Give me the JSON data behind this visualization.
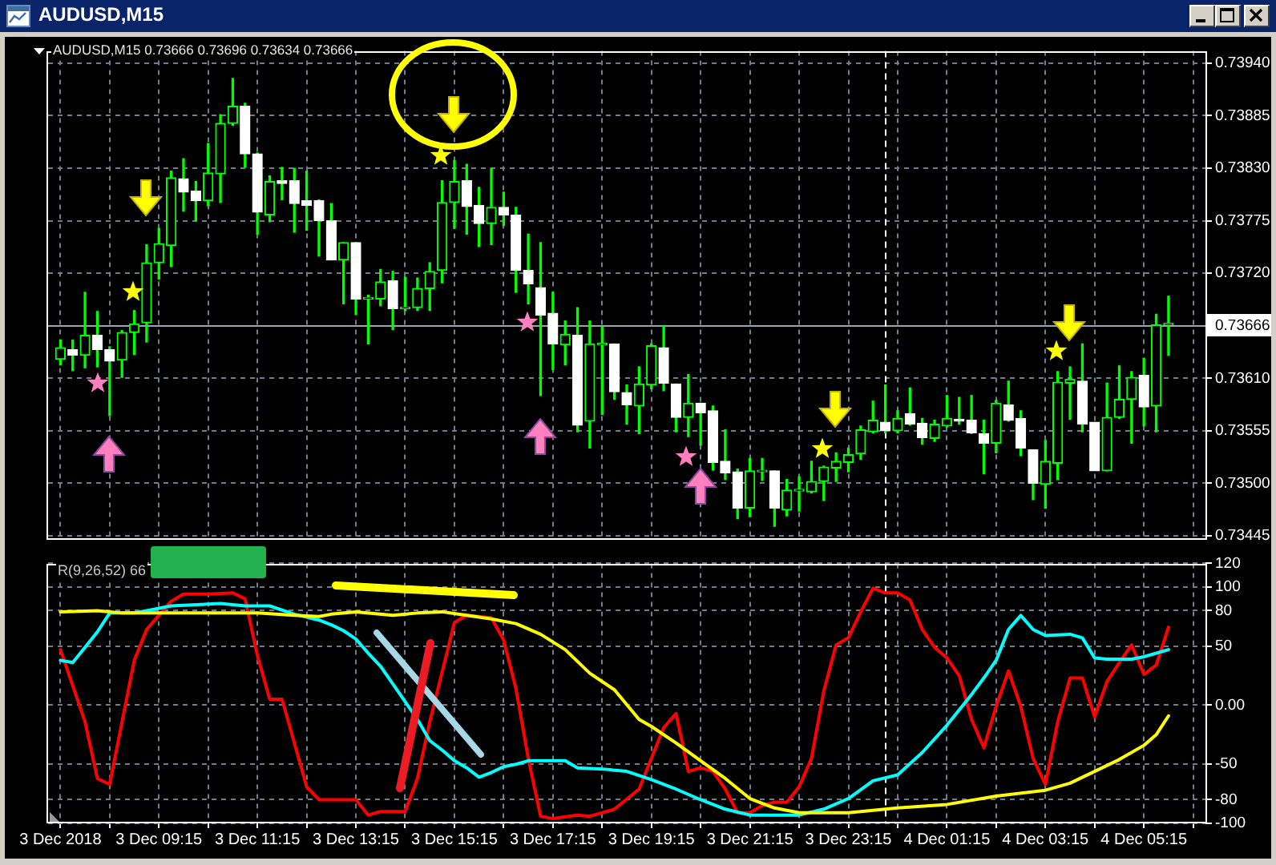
{
  "chart_data": [
    {
      "type": "candlestick",
      "title": "AUDUSD,M15",
      "subtitle": "AUDUSD,M15 0.73666 0.73696 0.73634 0.73666",
      "x": [
        "2018-12-03T07:15",
        "2018-12-03T07:30",
        "2018-12-03T07:45",
        "2018-12-03T08:00",
        "2018-12-03T08:15",
        "2018-12-03T08:30",
        "2018-12-03T08:45",
        "2018-12-03T09:00",
        "2018-12-03T09:15",
        "2018-12-03T09:30",
        "2018-12-03T09:45",
        "2018-12-03T10:00",
        "2018-12-03T10:15",
        "2018-12-03T10:30",
        "2018-12-03T10:45",
        "2018-12-03T11:00",
        "2018-12-03T11:15",
        "2018-12-03T11:30",
        "2018-12-03T11:45",
        "2018-12-03T12:00",
        "2018-12-03T12:15",
        "2018-12-03T12:30",
        "2018-12-03T12:45",
        "2018-12-03T13:00",
        "2018-12-03T13:15",
        "2018-12-03T13:30",
        "2018-12-03T13:45",
        "2018-12-03T14:00",
        "2018-12-03T14:15",
        "2018-12-03T14:30",
        "2018-12-03T14:45",
        "2018-12-03T15:00",
        "2018-12-03T15:15",
        "2018-12-03T15:30",
        "2018-12-03T15:45",
        "2018-12-03T16:00",
        "2018-12-03T16:15",
        "2018-12-03T16:30",
        "2018-12-03T16:45",
        "2018-12-03T17:00",
        "2018-12-03T17:15",
        "2018-12-03T17:30",
        "2018-12-03T17:45",
        "2018-12-03T18:00",
        "2018-12-03T18:15",
        "2018-12-03T18:30",
        "2018-12-03T18:45",
        "2018-12-03T19:00",
        "2018-12-03T19:15",
        "2018-12-03T19:30",
        "2018-12-03T19:45",
        "2018-12-03T20:00",
        "2018-12-03T20:15",
        "2018-12-03T20:30",
        "2018-12-03T20:45",
        "2018-12-03T21:00",
        "2018-12-03T21:15",
        "2018-12-03T21:30",
        "2018-12-03T21:45",
        "2018-12-03T22:00",
        "2018-12-03T22:15",
        "2018-12-03T22:30",
        "2018-12-03T22:45",
        "2018-12-03T23:00",
        "2018-12-03T23:15",
        "2018-12-03T23:30",
        "2018-12-03T23:45",
        "2018-12-04T00:00",
        "2018-12-04T00:15",
        "2018-12-04T00:30",
        "2018-12-04T00:45",
        "2018-12-04T01:00",
        "2018-12-04T01:15",
        "2018-12-04T01:30",
        "2018-12-04T01:45",
        "2018-12-04T02:00",
        "2018-12-04T02:15",
        "2018-12-04T02:30",
        "2018-12-04T02:45",
        "2018-12-04T03:00",
        "2018-12-04T03:15",
        "2018-12-04T03:30",
        "2018-12-04T03:45",
        "2018-12-04T04:00",
        "2018-12-04T04:15",
        "2018-12-04T04:30",
        "2018-12-04T04:45",
        "2018-12-04T05:00",
        "2018-12-04T05:15",
        "2018-12-04T05:30",
        "2018-12-04T05:45"
      ],
      "ohlc": [
        [
          0.7363,
          0.7365,
          0.73624,
          0.73642
        ],
        [
          0.7364,
          0.7365,
          0.73618,
          0.73634
        ],
        [
          0.73634,
          0.737,
          0.73621,
          0.73655
        ],
        [
          0.73655,
          0.7368,
          0.73622,
          0.7364
        ],
        [
          0.7364,
          0.73643,
          0.73571,
          0.73628
        ],
        [
          0.73629,
          0.7366,
          0.73611,
          0.73658
        ],
        [
          0.73658,
          0.73681,
          0.73635,
          0.73667
        ],
        [
          0.73668,
          0.7375,
          0.73648,
          0.73731
        ],
        [
          0.73731,
          0.73767,
          0.73714,
          0.73751
        ],
        [
          0.73749,
          0.73827,
          0.73727,
          0.7382
        ],
        [
          0.73819,
          0.7384,
          0.73785,
          0.73805
        ],
        [
          0.73806,
          0.73816,
          0.73775,
          0.73796
        ],
        [
          0.73796,
          0.73856,
          0.73791,
          0.73825
        ],
        [
          0.73824,
          0.73886,
          0.73794,
          0.73877
        ],
        [
          0.73877,
          0.73924,
          0.73875,
          0.73895
        ],
        [
          0.73895,
          0.73898,
          0.73831,
          0.73845
        ],
        [
          0.73845,
          0.73846,
          0.73761,
          0.73784
        ],
        [
          0.73781,
          0.73822,
          0.73774,
          0.73816
        ],
        [
          0.73817,
          0.73831,
          0.73797,
          0.73814
        ],
        [
          0.73817,
          0.7383,
          0.73763,
          0.73793
        ],
        [
          0.73796,
          0.73827,
          0.73765,
          0.73791
        ],
        [
          0.73796,
          0.73797,
          0.73738,
          0.73775
        ],
        [
          0.73775,
          0.73793,
          0.73734,
          0.73734
        ],
        [
          0.73734,
          0.73752,
          0.73688,
          0.73752
        ],
        [
          0.73752,
          0.73752,
          0.73677,
          0.73693
        ],
        [
          0.73693,
          0.73697,
          0.73646,
          0.73693
        ],
        [
          0.73693,
          0.73724,
          0.73686,
          0.73711
        ],
        [
          0.73712,
          0.73722,
          0.73661,
          0.73683
        ],
        [
          0.73683,
          0.73716,
          0.73681,
          0.73683
        ],
        [
          0.73684,
          0.73715,
          0.73681,
          0.73704
        ],
        [
          0.73704,
          0.73731,
          0.73681,
          0.73722
        ],
        [
          0.73723,
          0.73817,
          0.7371,
          0.73794
        ],
        [
          0.73794,
          0.73838,
          0.73767,
          0.73816
        ],
        [
          0.73817,
          0.73834,
          0.73761,
          0.7379
        ],
        [
          0.73791,
          0.7381,
          0.73748,
          0.73772
        ],
        [
          0.73772,
          0.7383,
          0.7375,
          0.73789
        ],
        [
          0.73789,
          0.73805,
          0.7377,
          0.73781
        ],
        [
          0.73781,
          0.73789,
          0.737,
          0.73723
        ],
        [
          0.73723,
          0.73761,
          0.73688,
          0.73709
        ],
        [
          0.73705,
          0.73752,
          0.73592,
          0.73676
        ],
        [
          0.73678,
          0.737,
          0.73619,
          0.73646
        ],
        [
          0.73645,
          0.7367,
          0.73624,
          0.73656
        ],
        [
          0.73655,
          0.73684,
          0.73554,
          0.73561
        ],
        [
          0.73565,
          0.7367,
          0.73537,
          0.73646
        ],
        [
          0.73645,
          0.73664,
          0.73572,
          0.73645
        ],
        [
          0.73646,
          0.73646,
          0.73588,
          0.73596
        ],
        [
          0.73595,
          0.73603,
          0.73562,
          0.73582
        ],
        [
          0.73581,
          0.73622,
          0.73552,
          0.73604
        ],
        [
          0.73603,
          0.73646,
          0.73599,
          0.73644
        ],
        [
          0.73642,
          0.73665,
          0.73597,
          0.73605
        ],
        [
          0.73604,
          0.73604,
          0.73554,
          0.73569
        ],
        [
          0.73569,
          0.73614,
          0.73549,
          0.73584
        ],
        [
          0.73584,
          0.73584,
          0.7354,
          0.73574
        ],
        [
          0.73576,
          0.73581,
          0.73514,
          0.73522
        ],
        [
          0.73523,
          0.73556,
          0.73504,
          0.73511
        ],
        [
          0.73512,
          0.73515,
          0.73463,
          0.73474
        ],
        [
          0.73474,
          0.73526,
          0.73465,
          0.73513
        ],
        [
          0.73512,
          0.73526,
          0.73503,
          0.73512
        ],
        [
          0.73513,
          0.73513,
          0.73455,
          0.73474
        ],
        [
          0.73472,
          0.73504,
          0.73466,
          0.73493
        ],
        [
          0.73492,
          0.73507,
          0.73471,
          0.73492
        ],
        [
          0.73491,
          0.73523,
          0.7349,
          0.73502
        ],
        [
          0.73502,
          0.73518,
          0.73482,
          0.73517
        ],
        [
          0.73516,
          0.73532,
          0.73502,
          0.73523
        ],
        [
          0.73522,
          0.73537,
          0.73512,
          0.7353
        ],
        [
          0.73531,
          0.7356,
          0.73525,
          0.73556
        ],
        [
          0.73554,
          0.73586,
          0.73553,
          0.73566
        ],
        [
          0.73564,
          0.73603,
          0.73553,
          0.73555
        ],
        [
          0.73555,
          0.73576,
          0.73553,
          0.73568
        ],
        [
          0.73573,
          0.736,
          0.73561,
          0.73562
        ],
        [
          0.73563,
          0.73568,
          0.73541,
          0.73548
        ],
        [
          0.73547,
          0.73566,
          0.73544,
          0.73562
        ],
        [
          0.7356,
          0.73592,
          0.73559,
          0.73568
        ],
        [
          0.73567,
          0.7359,
          0.73562,
          0.73565
        ],
        [
          0.73566,
          0.73592,
          0.73552,
          0.73553
        ],
        [
          0.73552,
          0.73566,
          0.7351,
          0.73542
        ],
        [
          0.73542,
          0.73587,
          0.73532,
          0.73584
        ],
        [
          0.73582,
          0.73607,
          0.73565,
          0.73566
        ],
        [
          0.73568,
          0.73576,
          0.73529,
          0.73537
        ],
        [
          0.73535,
          0.73535,
          0.73483,
          0.735
        ],
        [
          0.73499,
          0.73545,
          0.73474,
          0.73523
        ],
        [
          0.73521,
          0.73617,
          0.73504,
          0.73606
        ],
        [
          0.73605,
          0.73622,
          0.73567,
          0.73609
        ],
        [
          0.73607,
          0.73646,
          0.73554,
          0.73562
        ],
        [
          0.73564,
          0.73565,
          0.73512,
          0.73513
        ],
        [
          0.73513,
          0.73605,
          0.73513,
          0.73569
        ],
        [
          0.73569,
          0.73623,
          0.73568,
          0.73588
        ],
        [
          0.73588,
          0.73617,
          0.73542,
          0.73611
        ],
        [
          0.73613,
          0.73631,
          0.7356,
          0.7358
        ],
        [
          0.73581,
          0.73677,
          0.73554,
          0.73666
        ],
        [
          0.73666,
          0.73696,
          0.73634,
          0.73666
        ]
      ],
      "color": "#00ff00",
      "colors": [
        "#00ff00",
        "#ffffff",
        "#00ff00",
        "#ffffff",
        "#ffffff",
        "#00ff00",
        "#00ff00",
        "#00ff00",
        "#00ff00",
        "#00ff00",
        "#ffffff",
        "#ffffff",
        "#00ff00",
        "#00ff00",
        "#00ff00",
        "#ffffff",
        "#ffffff",
        "#00ff00",
        "#ffffff",
        "#ffffff",
        "#ffffff",
        "#ffffff",
        "#ffffff",
        "#00ff00",
        "#ffffff",
        "#00ff00",
        "#00ff00",
        "#ffffff",
        "#00ff00",
        "#00ff00",
        "#00ff00",
        "#00ff00",
        "#00ff00",
        "#ffffff",
        "#ffffff",
        "#00ff00",
        "#ffffff",
        "#ffffff",
        "#ffffff",
        "#ffffff",
        "#ffffff",
        "#00ff00",
        "#ffffff",
        "#00ff00",
        "#00ff00",
        "#ffffff",
        "#ffffff",
        "#00ff00",
        "#00ff00",
        "#ffffff",
        "#ffffff",
        "#00ff00",
        "#ffffff",
        "#ffffff",
        "#ffffff",
        "#ffffff",
        "#00ff00",
        "#00ff00",
        "#ffffff",
        "#00ff00",
        "#00ff00",
        "#00ff00",
        "#00ff00",
        "#00ff00",
        "#00ff00",
        "#00ff00",
        "#00ff00",
        "#ffffff",
        "#00ff00",
        "#ffffff",
        "#ffffff",
        "#00ff00",
        "#00ff00",
        "#ffffff",
        "#ffffff",
        "#ffffff",
        "#00ff00",
        "#ffffff",
        "#ffffff",
        "#ffffff",
        "#00ff00",
        "#00ff00",
        "#00ff00",
        "#ffffff",
        "#ffffff",
        "#00ff00",
        "#00ff00",
        "#00ff00",
        "#ffffff",
        "#00ff00",
        "#00ff00"
      ],
      "xlim": [
        "2018-12-03T07:00",
        "2018-12-04T06:30"
      ],
      "xticks": [
        {
          "value": "2018-12-03T07:15",
          "label": null
        },
        {
          "value": "2018-12-03T08:15",
          "label": null
        },
        {
          "value": "2018-12-03T09:15",
          "label": null
        },
        {
          "value": "2018-12-03T10:15",
          "label": null
        },
        {
          "value": "2018-12-03T11:15",
          "label": null
        },
        {
          "value": "2018-12-03T12:15",
          "label": null
        },
        {
          "value": "2018-12-03T13:15",
          "label": null
        },
        {
          "value": "2018-12-03T14:15",
          "label": null
        },
        {
          "value": "2018-12-03T15:15",
          "label": null
        },
        {
          "value": "2018-12-03T16:15",
          "label": null
        },
        {
          "value": "2018-12-03T17:15",
          "label": null
        },
        {
          "value": "2018-12-03T18:15",
          "label": null
        },
        {
          "value": "2018-12-03T19:15",
          "label": null
        },
        {
          "value": "2018-12-03T20:15",
          "label": null
        },
        {
          "value": "2018-12-03T21:15",
          "label": null
        },
        {
          "value": "2018-12-03T22:15",
          "label": null
        },
        {
          "value": "2018-12-03T23:15",
          "label": null
        },
        {
          "value": "2018-12-04T00:15",
          "label": null
        },
        {
          "value": "2018-12-04T01:15",
          "label": null
        },
        {
          "value": "2018-12-04T02:15",
          "label": null
        },
        {
          "value": "2018-12-04T03:15",
          "label": null
        },
        {
          "value": "2018-12-04T04:15",
          "label": null
        },
        {
          "value": "2018-12-04T05:15",
          "label": null
        },
        {
          "value": "2018-12-04T06:15",
          "label": null
        }
      ],
      "ylim": [
        0.73442,
        0.73953
      ],
      "yticks": [
        {
          "value": 0.7394,
          "label": "0.73940"
        },
        0.73885,
        {
          "value": 0.7383,
          "label": "0.73830"
        },
        0.73775,
        {
          "value": 0.7372,
          "label": "0.73720"
        },
        {
          "value": 0.7361,
          "label": "0.73610"
        },
        0.73555,
        {
          "value": 0.735,
          "label": "0.73500"
        },
        0.73445
      ],
      "tick_labels": "y",
      "grid": true,
      "ref_lines": [
        {
          "axis": "y",
          "value": 0.73666,
          "label": "0.73666",
          "color": "#9aa4b0"
        },
        {
          "axis": "x",
          "value": "2018-12-04T00:00",
          "color": "#ffffff",
          "line_style": "dashed"
        }
      ]
    },
    {
      "type": "line",
      "title": "R(9,26,52) 66",
      "series": [
        {
          "color": "#ff0000",
          "x": [
            "2018-12-03T07:15",
            "2018-12-03T07:45",
            "2018-12-03T08:00",
            "2018-12-03T08:15",
            "2018-12-03T08:45",
            "2018-12-03T09:00",
            "2018-12-03T09:30",
            "2018-12-03T09:45",
            "2018-12-03T10:15",
            "2018-12-03T10:45",
            "2018-12-03T11:00",
            "2018-12-03T11:15",
            "2018-12-03T11:30",
            "2018-12-03T11:45",
            "2018-12-03T12:15",
            "2018-12-03T12:30",
            "2018-12-03T13:15",
            "2018-12-03T13:30",
            "2018-12-03T13:45",
            "2018-12-03T14:15",
            "2018-12-03T14:30",
            "2018-12-03T14:45",
            "2018-12-03T15:15",
            "2018-12-03T15:30",
            "2018-12-03T16:00",
            "2018-12-03T16:15",
            "2018-12-03T16:30",
            "2018-12-03T16:45",
            "2018-12-03T17:00",
            "2018-12-03T17:15",
            "2018-12-03T17:45",
            "2018-12-03T18:00",
            "2018-12-03T18:30",
            "2018-12-03T19:00",
            "2018-12-03T19:15",
            "2018-12-03T19:30",
            "2018-12-03T19:45",
            "2018-12-03T20:00",
            "2018-12-03T20:15",
            "2018-12-03T20:30",
            "2018-12-03T20:45",
            "2018-12-03T21:00",
            "2018-12-03T21:15",
            "2018-12-03T21:30",
            "2018-12-03T21:45",
            "2018-12-03T22:00",
            "2018-12-03T22:15",
            "2018-12-03T22:30",
            "2018-12-03T22:45",
            "2018-12-03T23:00",
            "2018-12-03T23:15",
            "2018-12-03T23:30",
            "2018-12-03T23:45",
            "2018-12-04T00:00",
            "2018-12-04T00:15",
            "2018-12-04T00:30",
            "2018-12-04T00:45",
            "2018-12-04T01:00",
            "2018-12-04T01:15",
            "2018-12-04T01:30",
            "2018-12-04T01:45",
            "2018-12-04T02:00",
            "2018-12-04T02:15",
            "2018-12-04T02:30",
            "2018-12-04T02:45",
            "2018-12-04T03:00",
            "2018-12-04T03:15",
            "2018-12-04T03:30",
            "2018-12-04T03:45",
            "2018-12-04T04:00",
            "2018-12-04T04:15",
            "2018-12-04T04:30",
            "2018-12-04T04:45",
            "2018-12-04T05:00",
            "2018-12-04T05:15",
            "2018-12-04T05:30",
            "2018-12-04T05:45"
          ],
          "values": [
            47,
            -14,
            -62,
            -67,
            38,
            64,
            88,
            94,
            94,
            95,
            90,
            42,
            5,
            5,
            -69,
            -80,
            -80,
            -93,
            -90,
            -90,
            -62,
            -14,
            70,
            76,
            74,
            55,
            14,
            -45,
            -94,
            -96,
            -93,
            -94,
            -88,
            -71,
            -45,
            -19,
            -7,
            -56,
            -53,
            -56,
            -71,
            -91,
            -91,
            -85,
            -82,
            -82,
            -69,
            -45,
            12,
            51,
            57,
            79,
            99,
            95,
            95,
            89,
            64,
            49,
            40,
            25,
            -12,
            -36,
            -1,
            29,
            -1,
            -45,
            -67,
            -14,
            23,
            23,
            -10,
            20,
            36,
            51,
            26,
            34,
            66
          ]
        },
        {
          "color": "#00ffff",
          "x": [
            "2018-12-03T07:15",
            "2018-12-03T07:30",
            "2018-12-03T07:45",
            "2018-12-03T08:00",
            "2018-12-03T08:15",
            "2018-12-03T08:45",
            "2018-12-03T09:30",
            "2018-12-03T10:30",
            "2018-12-03T11:00",
            "2018-12-03T11:30",
            "2018-12-03T12:00",
            "2018-12-03T12:30",
            "2018-12-03T12:45",
            "2018-12-03T13:00",
            "2018-12-03T13:15",
            "2018-12-03T13:30",
            "2018-12-03T13:45",
            "2018-12-03T14:00",
            "2018-12-03T14:15",
            "2018-12-03T14:30",
            "2018-12-03T14:45",
            "2018-12-03T15:00",
            "2018-12-03T15:15",
            "2018-12-03T15:30",
            "2018-12-03T15:45",
            "2018-12-03T16:00",
            "2018-12-03T16:15",
            "2018-12-03T16:30",
            "2018-12-03T16:45",
            "2018-12-03T17:30",
            "2018-12-03T17:45",
            "2018-12-03T18:15",
            "2018-12-03T18:45",
            "2018-12-03T19:15",
            "2018-12-03T19:45",
            "2018-12-03T20:15",
            "2018-12-03T20:45",
            "2018-12-03T21:15",
            "2018-12-03T21:45",
            "2018-12-03T22:15",
            "2018-12-03T22:45",
            "2018-12-03T23:15",
            "2018-12-03T23:45",
            "2018-12-04T00:15",
            "2018-12-04T00:45",
            "2018-12-04T01:15",
            "2018-12-04T01:45",
            "2018-12-04T02:00",
            "2018-12-04T02:15",
            "2018-12-04T02:30",
            "2018-12-04T02:45",
            "2018-12-04T03:00",
            "2018-12-04T03:15",
            "2018-12-04T03:45",
            "2018-12-04T04:00",
            "2018-12-04T04:15",
            "2018-12-04T04:30",
            "2018-12-04T05:00",
            "2018-12-04T05:15",
            "2018-12-04T05:45"
          ],
          "values": [
            38,
            36,
            49,
            62,
            78,
            78,
            84,
            86,
            84,
            84,
            77,
            72,
            68,
            63,
            56,
            44,
            33,
            18,
            3,
            -12,
            -30,
            -38,
            -47,
            -53,
            -61,
            -57,
            -52,
            -50,
            -47,
            -47,
            -53,
            -54,
            -56,
            -63,
            -71,
            -80,
            -88,
            -93,
            -93,
            -93,
            -88,
            -79,
            -64,
            -59,
            -40,
            -17,
            9,
            23,
            38,
            64,
            76,
            64,
            59,
            60,
            57,
            40,
            39,
            39,
            41,
            47
          ]
        },
        {
          "color": "#ffff00",
          "x": [
            "2018-12-03T07:15",
            "2018-12-03T08:00",
            "2018-12-03T08:30",
            "2018-12-03T10:15",
            "2018-12-03T11:15",
            "2018-12-03T12:00",
            "2018-12-03T12:30",
            "2018-12-03T12:45",
            "2018-12-03T13:15",
            "2018-12-03T14:00",
            "2018-12-03T14:30",
            "2018-12-03T15:00",
            "2018-12-03T15:30",
            "2018-12-03T16:00",
            "2018-12-03T16:30",
            "2018-12-03T17:00",
            "2018-12-03T17:30",
            "2018-12-03T18:00",
            "2018-12-03T18:30",
            "2018-12-03T19:00",
            "2018-12-03T19:15",
            "2018-12-03T19:45",
            "2018-12-03T20:15",
            "2018-12-03T20:45",
            "2018-12-03T21:15",
            "2018-12-03T21:45",
            "2018-12-03T22:15",
            "2018-12-03T23:15",
            "2018-12-04T00:15",
            "2018-12-04T01:15",
            "2018-12-04T02:15",
            "2018-12-04T03:15",
            "2018-12-04T03:45",
            "2018-12-04T04:15",
            "2018-12-04T04:45",
            "2018-12-04T05:15",
            "2018-12-04T05:30",
            "2018-12-04T05:45"
          ],
          "values": [
            79,
            80,
            78,
            78,
            78,
            76,
            75,
            77,
            79,
            76,
            78,
            79,
            76,
            73,
            69,
            60,
            47,
            27,
            13,
            -12,
            -18,
            -32,
            -47,
            -62,
            -79,
            -87,
            -91,
            -91,
            -87,
            -84,
            -77,
            -72,
            -66,
            -56,
            -46,
            -34,
            -25,
            -9
          ]
        }
      ],
      "xlim": [
        "2018-12-03T07:00",
        "2018-12-04T06:30"
      ],
      "xticks": [
        {
          "value": "2018-12-03T07:15",
          "label": "3 Dec 2018"
        },
        {
          "value": "2018-12-03T08:15",
          "label": null
        },
        {
          "value": "2018-12-03T09:15",
          "label": "3 Dec 09:15"
        },
        {
          "value": "2018-12-03T10:15",
          "label": null
        },
        {
          "value": "2018-12-03T11:15",
          "label": "3 Dec 11:15"
        },
        {
          "value": "2018-12-03T12:15",
          "label": null
        },
        {
          "value": "2018-12-03T13:15",
          "label": "3 Dec 13:15"
        },
        {
          "value": "2018-12-03T14:15",
          "label": null
        },
        {
          "value": "2018-12-03T15:15",
          "label": "3 Dec 15:15"
        },
        {
          "value": "2018-12-03T16:15",
          "label": null
        },
        {
          "value": "2018-12-03T17:15",
          "label": "3 Dec 17:15"
        },
        {
          "value": "2018-12-03T18:15",
          "label": null
        },
        {
          "value": "2018-12-03T19:15",
          "label": "3 Dec 19:15"
        },
        {
          "value": "2018-12-03T20:15",
          "label": null
        },
        {
          "value": "2018-12-03T21:15",
          "label": "3 Dec 21:15"
        },
        {
          "value": "2018-12-03T22:15",
          "label": null
        },
        {
          "value": "2018-12-03T23:15",
          "label": "3 Dec 23:15"
        },
        {
          "value": "2018-12-04T00:15",
          "label": null
        },
        {
          "value": "2018-12-04T01:15",
          "label": "4 Dec 01:15"
        },
        {
          "value": "2018-12-04T02:15",
          "label": null
        },
        {
          "value": "2018-12-04T03:15",
          "label": "4 Dec 03:15"
        },
        {
          "value": "2018-12-04T04:15",
          "label": null
        },
        {
          "value": "2018-12-04T05:15",
          "label": "4 Dec 05:15"
        },
        {
          "value": "2018-12-04T06:15",
          "label": null
        }
      ],
      "ylim": [
        -100,
        120
      ],
      "yticks": [
        -100,
        -80,
        -50,
        {
          "value": 0,
          "label": "0.00"
        },
        50,
        80,
        100,
        120
      ],
      "grid": true,
      "ref_lines": [
        {
          "axis": "x",
          "value": "2018-12-04T00:00",
          "color": "#ffffff",
          "line_style": "dashed"
        }
      ]
    }
  ]
}
